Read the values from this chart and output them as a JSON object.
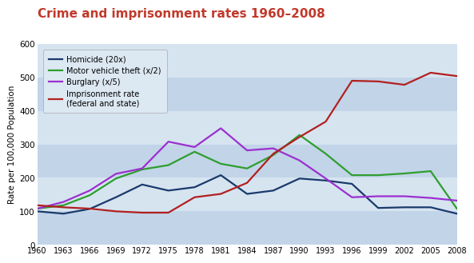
{
  "title": "Crime and imprisonment rates 1960–2008",
  "title_color": "#c0392b",
  "ylabel": "Rate per 100,000 Population",
  "ylim": [
    0,
    600
  ],
  "xlim": [
    1960,
    2008
  ],
  "yticks": [
    0,
    100,
    200,
    300,
    400,
    500,
    600
  ],
  "xticks": [
    1960,
    1963,
    1966,
    1969,
    1972,
    1975,
    1978,
    1981,
    1984,
    1987,
    1990,
    1993,
    1996,
    1999,
    2002,
    2005,
    2008
  ],
  "stripe_colors": [
    "#c2d4e8",
    "#d6e4f0",
    "#c2d4e8",
    "#d6e4f0",
    "#c2d4e8",
    "#d6e4f0"
  ],
  "homicide": {
    "label": "Homicide (20x)",
    "color": "#1a3a6b",
    "years": [
      1960,
      1963,
      1966,
      1969,
      1972,
      1975,
      1978,
      1981,
      1984,
      1987,
      1990,
      1993,
      1996,
      1999,
      2002,
      2005,
      2008
    ],
    "values": [
      100,
      93,
      107,
      142,
      180,
      162,
      172,
      208,
      152,
      162,
      198,
      192,
      182,
      110,
      112,
      112,
      93
    ]
  },
  "motor_vehicle": {
    "label": "Motor vehicle theft (x/2)",
    "color": "#2e9e2e",
    "years": [
      1960,
      1963,
      1966,
      1969,
      1972,
      1975,
      1978,
      1981,
      1984,
      1987,
      1990,
      1993,
      1996,
      1999,
      2002,
      2005,
      2008
    ],
    "values": [
      108,
      118,
      148,
      198,
      225,
      238,
      278,
      242,
      228,
      268,
      328,
      272,
      208,
      208,
      213,
      220,
      108
    ]
  },
  "burglary": {
    "label": "Burglary (x/5)",
    "color": "#9b30d0",
    "years": [
      1960,
      1963,
      1966,
      1969,
      1972,
      1975,
      1978,
      1981,
      1984,
      1987,
      1990,
      1993,
      1996,
      1999,
      2002,
      2005,
      2008
    ],
    "values": [
      108,
      128,
      162,
      212,
      228,
      308,
      292,
      348,
      282,
      288,
      252,
      198,
      142,
      145,
      145,
      140,
      132
    ]
  },
  "imprisonment": {
    "label": "Imprisonment rate\n(federal and state)",
    "color": "#b22020",
    "years": [
      1960,
      1963,
      1966,
      1969,
      1972,
      1975,
      1978,
      1981,
      1984,
      1987,
      1990,
      1993,
      1996,
      1999,
      2002,
      2005,
      2008
    ],
    "values": [
      118,
      112,
      108,
      100,
      96,
      96,
      142,
      152,
      185,
      272,
      322,
      368,
      490,
      488,
      478,
      514,
      504
    ]
  },
  "legend_bg": "#dce8f2",
  "legend_edge": "#aaaaaa",
  "fig_bg": "#ffffff",
  "title_area_bg": "#ffffff"
}
